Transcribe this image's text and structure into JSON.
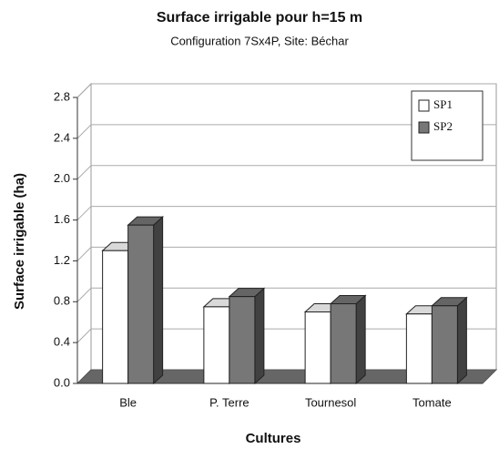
{
  "chart_data": {
    "type": "bar3d",
    "title": "Surface irrigable pour h=15 m",
    "subtitle": "Configuration 7Sx4P, Site: Béchar",
    "x_label": "Cultures",
    "y_label": "Surface irrigable (ha)",
    "categories": [
      "Ble",
      "P. Terre",
      "Tournesol",
      "Tomate"
    ],
    "series": [
      {
        "name": "SP1",
        "color": "#ffffff",
        "values": [
          1.3,
          0.75,
          0.7,
          0.68
        ]
      },
      {
        "name": "SP2",
        "color": "#777777",
        "values": [
          1.55,
          0.85,
          0.78,
          0.76
        ]
      }
    ],
    "ylim": [
      0,
      2.8
    ],
    "yticks": [
      {
        "value": 0,
        "label": "0.0"
      },
      0.4,
      0.8,
      1.2,
      1.6,
      {
        "value": 2,
        "label": "2.0"
      },
      2.4,
      2.8
    ],
    "grid": true,
    "legend": "top-right"
  }
}
